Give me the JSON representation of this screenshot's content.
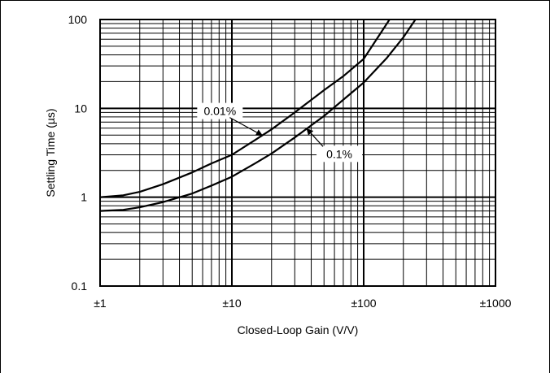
{
  "chart_data": {
    "type": "line",
    "title": "",
    "xlabel": "Closed-Loop Gain (V/V)",
    "ylabel": "Settling Time (µs)",
    "x_scale": "log",
    "y_scale": "log",
    "xlim": [
      1,
      1000
    ],
    "ylim": [
      0.1,
      100
    ],
    "x_ticks": [
      1,
      10,
      100,
      1000
    ],
    "x_tick_labels": [
      "±1",
      "±10",
      "±100",
      "±1000"
    ],
    "y_ticks": [
      0.1,
      1,
      10,
      100
    ],
    "y_tick_labels": [
      "0.1",
      "1",
      "10",
      "100"
    ],
    "grid": true,
    "series": [
      {
        "name": "0.01%",
        "x": [
          1,
          1.5,
          2,
          3,
          5,
          7,
          10,
          15,
          20,
          30,
          50,
          70,
          100,
          150,
          157
        ],
        "y": [
          1.0,
          1.05,
          1.15,
          1.4,
          1.9,
          2.4,
          3.0,
          4.4,
          5.8,
          9.0,
          16,
          23,
          36,
          90,
          100
        ]
      },
      {
        "name": "0.1%",
        "x": [
          1,
          1.5,
          2,
          3,
          5,
          7,
          10,
          15,
          20,
          30,
          50,
          70,
          100,
          150,
          200,
          247
        ],
        "y": [
          0.7,
          0.72,
          0.77,
          0.88,
          1.1,
          1.35,
          1.7,
          2.4,
          3.1,
          4.7,
          8.2,
          12.5,
          19.5,
          37,
          63,
          100
        ]
      }
    ],
    "annotations": [
      {
        "text": "0.01%",
        "series": "0.01%",
        "at_x": 17
      },
      {
        "text": "0.1%",
        "series": "0.1%",
        "at_x": 37
      }
    ]
  }
}
